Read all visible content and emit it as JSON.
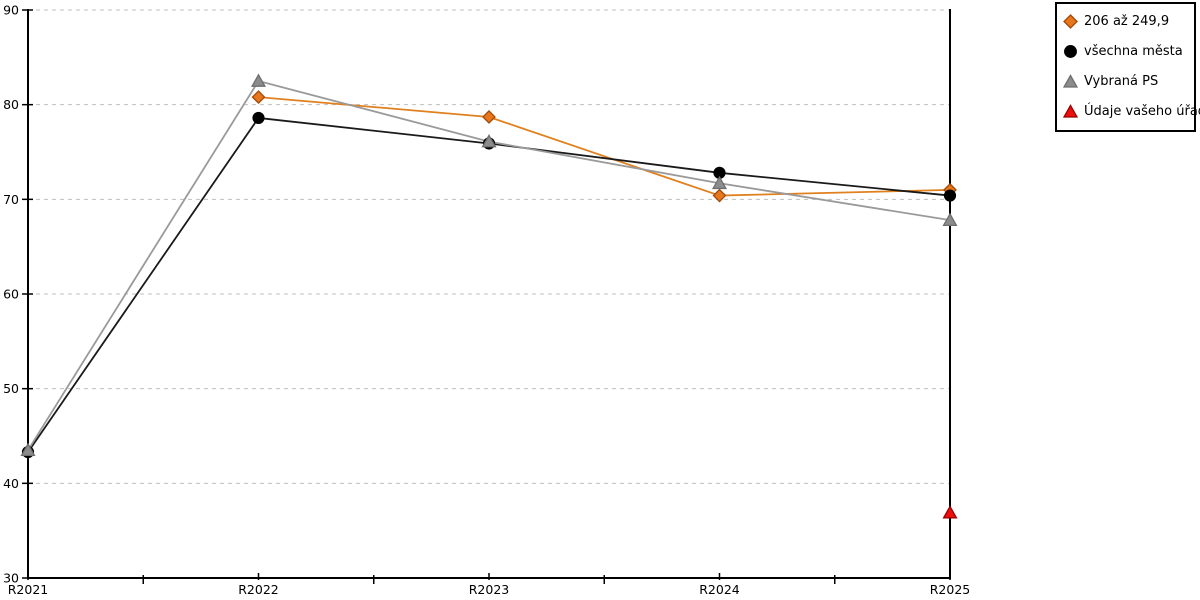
{
  "chart_data": {
    "type": "line",
    "title": "",
    "xlabel": "",
    "ylabel": "",
    "categories": [
      "R2021",
      "R2022",
      "R2023",
      "R2024",
      "R2025"
    ],
    "series": [
      {
        "name": "206 až 249,9",
        "marker": "diamond",
        "show_line": true,
        "values": [
          null,
          80.8,
          78.7,
          70.4,
          71.0
        ],
        "line_color": "#E0801E",
        "marker_fill": "#E8761B",
        "marker_stroke": "#A04A09"
      },
      {
        "name": "všechna města",
        "marker": "circle",
        "show_line": true,
        "values": [
          43.3,
          78.6,
          75.9,
          72.8,
          70.4
        ],
        "line_color": "#1A1A1A",
        "marker_fill": "#000000",
        "marker_stroke": "#000000"
      },
      {
        "name": "Vybraná PS",
        "marker": "triangle",
        "show_line": true,
        "values": [
          43.5,
          82.5,
          76.1,
          71.7,
          67.8
        ],
        "line_color": "#9A9A9A",
        "marker_fill": "#8C8C8C",
        "marker_stroke": "#6E6E6E"
      },
      {
        "name": "Údaje vašeho úřadu",
        "marker": "triangle",
        "show_line": false,
        "values": [
          null,
          null,
          null,
          null,
          36.9
        ],
        "line_color": "#EE0E0E",
        "marker_fill": "#EE0E0E",
        "marker_stroke": "#990000"
      }
    ],
    "ylim": [
      30,
      90
    ],
    "ytick_step": 10,
    "yticklabels": [
      "30",
      "40",
      "50",
      "60",
      "70",
      "80",
      "90"
    ],
    "grid": "horizontal-dashed",
    "legend_position": "top-right"
  },
  "colors": {
    "background": "#FFFFFF",
    "axis": "#000000",
    "gridline": "#BFBFBF",
    "tick_text": "#000000",
    "legend_border": "#000000"
  }
}
